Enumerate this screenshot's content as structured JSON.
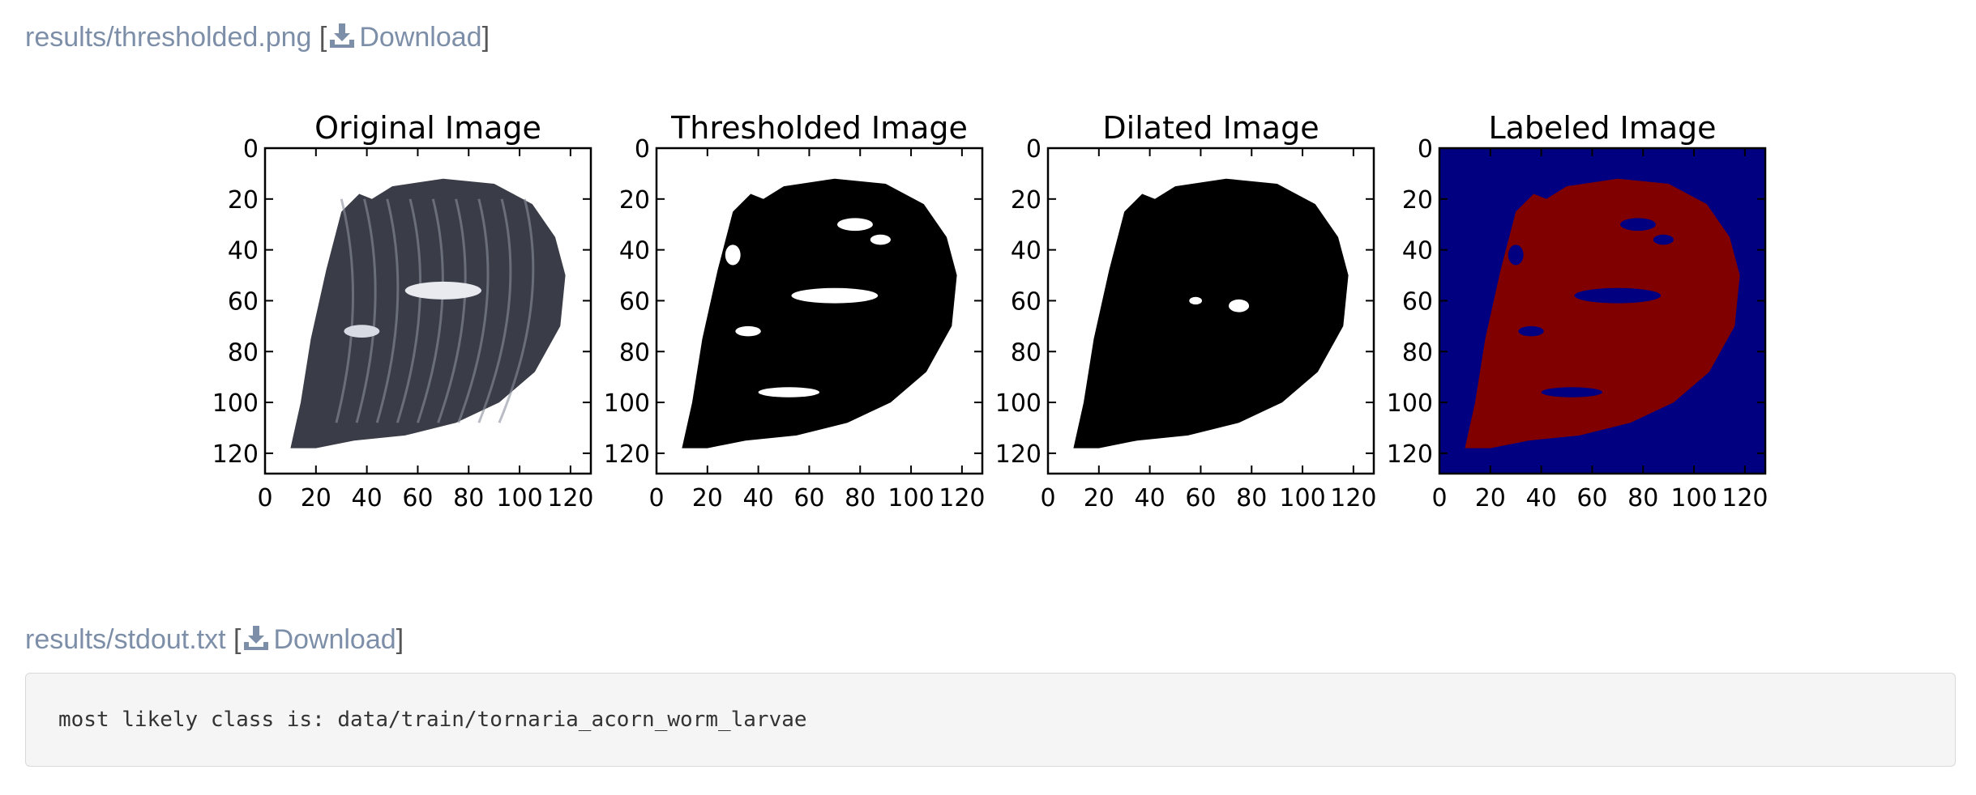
{
  "results": [
    {
      "filename": "results/thresholded.png",
      "download_label": "Download",
      "download_icon": "download-icon"
    },
    {
      "filename": "results/stdout.txt",
      "download_label": "Download",
      "download_icon": "download-icon"
    }
  ],
  "stdout": {
    "text": "most likely class is: data/train/tornaria_acorn_worm_larvae"
  },
  "figure": {
    "panels": [
      {
        "title": "Original Image",
        "kind": "grayscale"
      },
      {
        "title": "Thresholded Image",
        "kind": "binary"
      },
      {
        "title": "Dilated Image",
        "kind": "dilated"
      },
      {
        "title": "Labeled Image",
        "kind": "labeled"
      }
    ],
    "y_ticks": [
      "0",
      "20",
      "40",
      "60",
      "80",
      "100",
      "120"
    ],
    "x_ticks": [
      "0",
      "20",
      "40",
      "60",
      "80",
      "100",
      "120"
    ],
    "axis_range": [
      0,
      128
    ],
    "colors": {
      "labeled_background": "#000080",
      "labeled_foreground": "#800000",
      "binary_foreground": "#000000"
    }
  }
}
